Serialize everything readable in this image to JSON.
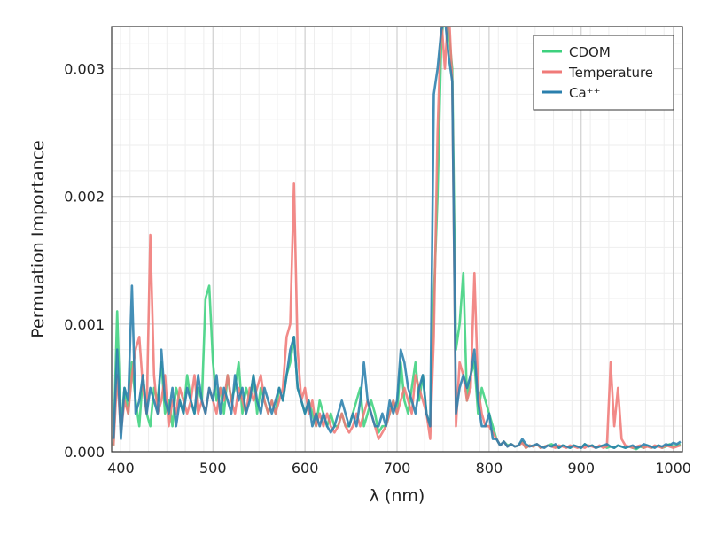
{
  "chart_data": {
    "type": "line",
    "title": "",
    "xlabel": "λ (nm)",
    "ylabel": "Permuation Importance",
    "xlim": [
      390,
      1010
    ],
    "ylim": [
      0.0,
      0.00333
    ],
    "x_ticks": [
      400,
      500,
      600,
      700,
      800,
      900,
      1000
    ],
    "x_tick_labels": [
      "400",
      "500",
      "600",
      "700",
      "800",
      "900",
      "1000"
    ],
    "y_ticks": [
      0.0,
      0.001,
      0.002,
      0.003
    ],
    "y_tick_labels": [
      "0.000",
      "0.001",
      "0.002",
      "0.003"
    ],
    "grid": true,
    "legend_position": "top-right",
    "x": [
      392,
      396,
      400,
      404,
      408,
      412,
      416,
      420,
      424,
      428,
      432,
      436,
      440,
      444,
      448,
      452,
      456,
      460,
      464,
      468,
      472,
      476,
      480,
      484,
      488,
      492,
      496,
      500,
      504,
      508,
      512,
      516,
      520,
      524,
      528,
      532,
      536,
      540,
      544,
      548,
      552,
      556,
      560,
      564,
      568,
      572,
      576,
      580,
      584,
      588,
      592,
      596,
      600,
      604,
      608,
      612,
      616,
      620,
      624,
      628,
      632,
      636,
      640,
      644,
      648,
      652,
      656,
      660,
      664,
      668,
      672,
      676,
      680,
      684,
      688,
      692,
      696,
      700,
      704,
      708,
      712,
      716,
      720,
      724,
      728,
      732,
      736,
      740,
      744,
      748,
      752,
      756,
      760,
      764,
      768,
      772,
      776,
      780,
      784,
      788,
      792,
      796,
      800,
      804,
      808,
      812,
      816,
      820,
      824,
      828,
      832,
      836,
      840,
      844,
      848,
      852,
      856,
      860,
      864,
      868,
      872,
      876,
      880,
      884,
      888,
      892,
      896,
      900,
      904,
      908,
      912,
      916,
      920,
      924,
      928,
      932,
      936,
      940,
      944,
      948,
      952,
      956,
      960,
      964,
      968,
      972,
      976,
      980,
      984,
      988,
      992,
      996,
      1000,
      1004,
      1008
    ],
    "series": [
      {
        "name": "CDOM",
        "color": "#3dd17e",
        "values": [
          5e-05,
          0.0011,
          0.0002,
          0.0005,
          0.0003,
          0.0007,
          0.0004,
          0.0002,
          0.0006,
          0.0003,
          0.0002,
          0.0005,
          0.0004,
          0.0007,
          0.0003,
          0.0004,
          0.0002,
          0.0005,
          0.0004,
          0.0003,
          0.0006,
          0.0004,
          0.0003,
          0.0005,
          0.0004,
          0.0012,
          0.0013,
          0.0007,
          0.0004,
          0.0005,
          0.0003,
          0.0006,
          0.0004,
          0.0005,
          0.0007,
          0.0003,
          0.0005,
          0.0004,
          0.0006,
          0.0003,
          0.0005,
          0.0004,
          0.0003,
          0.0004,
          0.0003,
          0.0005,
          0.0004,
          0.0006,
          0.0007,
          0.0009,
          0.0005,
          0.0004,
          0.0003,
          0.0004,
          0.0003,
          0.0002,
          0.0004,
          0.0003,
          0.0002,
          0.0003,
          0.0002,
          0.0002,
          0.0003,
          0.0002,
          0.0002,
          0.0003,
          0.0004,
          0.0005,
          0.0002,
          0.0003,
          0.0004,
          0.0003,
          0.00015,
          0.0002,
          0.0002,
          0.0003,
          0.0004,
          0.0003,
          0.0007,
          0.0004,
          0.0003,
          0.0005,
          0.0007,
          0.0004,
          0.0006,
          0.0003,
          0.0002,
          0.0012,
          0.002,
          0.0032,
          0.0035,
          0.0033,
          0.003,
          0.0008,
          0.001,
          0.0014,
          0.0004,
          0.0006,
          0.0007,
          0.0003,
          0.0005,
          0.0004,
          0.0003,
          0.0002,
          0.0001,
          5e-05,
          8e-05,
          5e-05,
          6e-05,
          4e-05,
          5e-05,
          8e-05,
          3e-05,
          5e-05,
          4e-05,
          6e-05,
          3e-05,
          4e-05,
          5e-05,
          6e-05,
          4e-05,
          3e-05,
          5e-05,
          4e-05,
          3e-05,
          5e-05,
          4e-05,
          3e-05,
          6e-05,
          4e-05,
          5e-05,
          3e-05,
          4e-05,
          5e-05,
          3e-05,
          4e-05,
          3e-05,
          5e-05,
          4e-05,
          3e-05,
          4e-05,
          3e-05,
          2e-05,
          4e-05,
          3e-05,
          5e-05,
          3e-05,
          4e-05,
          5e-05,
          3e-05,
          4e-05,
          6e-05,
          4e-05,
          5e-05,
          6e-05
        ]
      },
      {
        "name": "Temperature",
        "color": "#f07a78",
        "values": [
          5e-05,
          0.0006,
          0.00015,
          0.0004,
          0.0003,
          0.0006,
          0.0008,
          0.0009,
          0.0005,
          0.0003,
          0.0017,
          0.0006,
          0.0003,
          0.0004,
          0.0006,
          0.0002,
          0.0004,
          0.0003,
          0.0005,
          0.0004,
          0.0003,
          0.0004,
          0.0006,
          0.0003,
          0.0004,
          0.0003,
          0.0005,
          0.0004,
          0.0003,
          0.0005,
          0.0004,
          0.0006,
          0.0004,
          0.0003,
          0.0005,
          0.0004,
          0.0003,
          0.0005,
          0.0004,
          0.0005,
          0.0006,
          0.0004,
          0.0003,
          0.0004,
          0.0003,
          0.0004,
          0.0005,
          0.0009,
          0.001,
          0.0021,
          0.0008,
          0.0004,
          0.0005,
          0.0003,
          0.0004,
          0.0002,
          0.0003,
          0.0002,
          0.0003,
          0.0002,
          0.00015,
          0.0002,
          0.0003,
          0.0002,
          0.00015,
          0.0002,
          0.0003,
          0.0002,
          0.0003,
          0.0004,
          0.0003,
          0.0002,
          0.0001,
          0.00015,
          0.0002,
          0.0003,
          0.0004,
          0.0003,
          0.0004,
          0.0005,
          0.0004,
          0.0003,
          0.0006,
          0.0005,
          0.0004,
          0.0003,
          0.0001,
          0.0009,
          0.0025,
          0.0034,
          0.003,
          0.0035,
          0.0029,
          0.0002,
          0.0007,
          0.0006,
          0.0004,
          0.0005,
          0.0014,
          0.0005,
          0.0003,
          0.0002,
          0.0002,
          0.00015,
          0.0001,
          5e-05,
          8e-05,
          4e-05,
          6e-05,
          4e-05,
          5e-05,
          7e-05,
          3e-05,
          5e-05,
          4e-05,
          6e-05,
          3e-05,
          4e-05,
          5e-05,
          4e-05,
          3e-05,
          5e-05,
          4e-05,
          3e-05,
          5e-05,
          4e-05,
          3e-05,
          4e-05,
          3e-05,
          5e-05,
          4e-05,
          3e-05,
          5e-05,
          3e-05,
          4e-05,
          0.0007,
          0.0002,
          0.0005,
          0.0001,
          5e-05,
          4e-05,
          3e-05,
          4e-05,
          5e-05,
          3e-05,
          4e-05,
          3e-05,
          5e-05,
          4e-05,
          3e-05,
          5e-05,
          4e-05,
          3e-05,
          4e-05,
          5e-05
        ]
      },
      {
        "name": "Ca⁺⁺",
        "color": "#2a7fad",
        "values": [
          0.0001,
          0.0008,
          0.0001,
          0.0005,
          0.0004,
          0.0013,
          0.0003,
          0.0004,
          0.0006,
          0.0003,
          0.0005,
          0.0004,
          0.0003,
          0.0008,
          0.0004,
          0.0003,
          0.0005,
          0.0002,
          0.0004,
          0.0003,
          0.0005,
          0.0004,
          0.0003,
          0.0006,
          0.0004,
          0.0003,
          0.0005,
          0.0004,
          0.0006,
          0.0003,
          0.0005,
          0.0004,
          0.0003,
          0.0006,
          0.0004,
          0.0005,
          0.0003,
          0.0004,
          0.0006,
          0.0004,
          0.0003,
          0.0005,
          0.0004,
          0.0003,
          0.0004,
          0.0005,
          0.0004,
          0.0006,
          0.0008,
          0.0009,
          0.0005,
          0.0004,
          0.0003,
          0.0004,
          0.0002,
          0.0003,
          0.0002,
          0.0003,
          0.0002,
          0.00015,
          0.0002,
          0.0003,
          0.0004,
          0.0003,
          0.0002,
          0.0003,
          0.0002,
          0.0004,
          0.0007,
          0.0004,
          0.0003,
          0.0002,
          0.0002,
          0.0003,
          0.0002,
          0.0004,
          0.0003,
          0.0004,
          0.0008,
          0.0007,
          0.0005,
          0.0004,
          0.0003,
          0.0005,
          0.0006,
          0.0003,
          0.0002,
          0.0028,
          0.003,
          0.0033,
          0.0034,
          0.0031,
          0.0029,
          0.0003,
          0.0005,
          0.0006,
          0.0005,
          0.0006,
          0.0008,
          0.0004,
          0.0002,
          0.0002,
          0.0003,
          0.0001,
          0.0001,
          5e-05,
          8e-05,
          4e-05,
          6e-05,
          4e-05,
          5e-05,
          0.0001,
          6e-05,
          4e-05,
          5e-05,
          6e-05,
          4e-05,
          3e-05,
          5e-05,
          4e-05,
          6e-05,
          3e-05,
          5e-05,
          4e-05,
          3e-05,
          5e-05,
          4e-05,
          3e-05,
          6e-05,
          4e-05,
          5e-05,
          3e-05,
          4e-05,
          5e-05,
          6e-05,
          4e-05,
          3e-05,
          5e-05,
          4e-05,
          3e-05,
          4e-05,
          5e-05,
          3e-05,
          4e-05,
          6e-05,
          5e-05,
          4e-05,
          3e-05,
          5e-05,
          4e-05,
          6e-05,
          5e-05,
          7e-05,
          6e-05,
          8e-05
        ]
      }
    ]
  }
}
